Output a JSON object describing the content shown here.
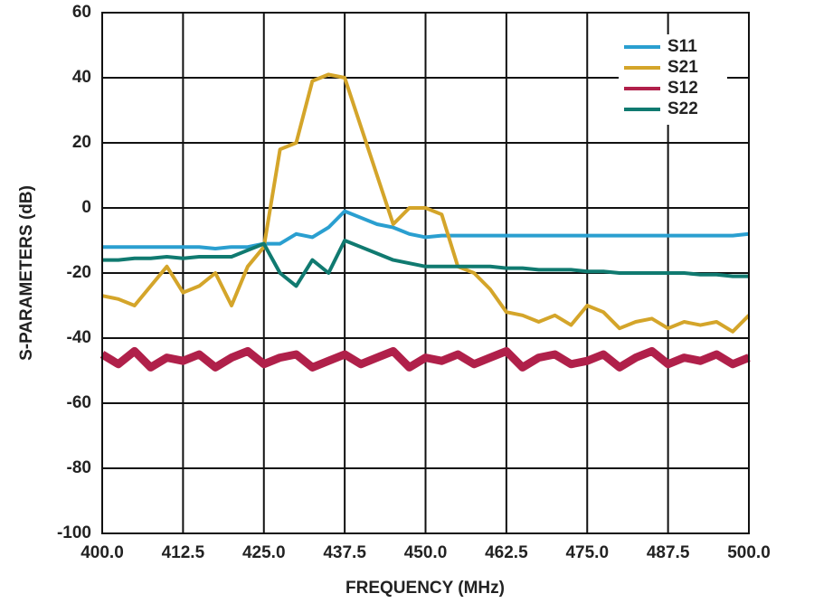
{
  "chart_data": {
    "type": "line",
    "ylabel": "S-PARAMETERS (dB)",
    "xlabel": "FREQUENCY (MHz)",
    "xlim": [
      400,
      500
    ],
    "ylim": [
      -100,
      60
    ],
    "xticks": [
      {
        "value": 400,
        "label": "400.0"
      },
      {
        "value": 412.5,
        "label": "412.5"
      },
      {
        "value": 425,
        "label": "425.0"
      },
      {
        "value": 437.5,
        "label": "437.5"
      },
      {
        "value": 450,
        "label": "450.0"
      },
      {
        "value": 462.5,
        "label": "462.5"
      },
      {
        "value": 475,
        "label": "475.0"
      },
      {
        "value": 487.5,
        "label": "487.5"
      },
      {
        "value": 500,
        "label": "500.0"
      }
    ],
    "yticks": [
      60,
      40,
      20,
      0,
      -20,
      -40,
      -60,
      -80,
      -100
    ],
    "grid": true,
    "legend": "upper right",
    "x": [
      400,
      402.5,
      405,
      407.5,
      410,
      412.5,
      415,
      417.5,
      420,
      422.5,
      425,
      427.5,
      430,
      432.5,
      435,
      437.5,
      440,
      442.5,
      445,
      447.5,
      450,
      452.5,
      455,
      457.5,
      460,
      462.5,
      465,
      467.5,
      470,
      472.5,
      475,
      477.5,
      480,
      482.5,
      485,
      487.5,
      490,
      492.5,
      495,
      497.5,
      500
    ],
    "series": [
      {
        "name": "S11",
        "color": "#2a9fd0",
        "values": [
          -12,
          -12,
          -12,
          -12,
          -12,
          -12,
          -12,
          -12.5,
          -12,
          -12,
          -11,
          -11,
          -8,
          -9,
          -6,
          -1,
          -3,
          -5,
          -6,
          -8,
          -9,
          -8.5,
          -8.5,
          -8.5,
          -8.5,
          -8.5,
          -8.5,
          -8.5,
          -8.5,
          -8.5,
          -8.5,
          -8.5,
          -8.5,
          -8.5,
          -8.5,
          -8.5,
          -8.5,
          -8.5,
          -8.5,
          -8.5,
          -8
        ]
      },
      {
        "name": "S21",
        "color": "#d4a52a",
        "values": [
          -27,
          -28,
          -30,
          -24,
          -18,
          -26,
          -24,
          -20,
          -30,
          -18,
          -12,
          18,
          20,
          39,
          41,
          40,
          25,
          10,
          -5,
          0,
          0,
          -2,
          -18,
          -20,
          -25,
          -32,
          -33,
          -35,
          -33,
          -36,
          -30,
          -32,
          -37,
          -35,
          -34,
          -37,
          -35,
          -36,
          -35,
          -38,
          -33
        ]
      },
      {
        "name": "S12",
        "color": "#b0204a",
        "values": [
          -45,
          -48,
          -44,
          -49,
          -46,
          -47,
          -45,
          -49,
          -46,
          -44,
          -48,
          -46,
          -45,
          -49,
          -47,
          -45,
          -48,
          -46,
          -44,
          -49,
          -46,
          -47,
          -45,
          -48,
          -46,
          -44,
          -49,
          -46,
          -45,
          -48,
          -47,
          -45,
          -49,
          -46,
          -44,
          -48,
          -46,
          -47,
          -45,
          -48,
          -46
        ]
      },
      {
        "name": "S22",
        "color": "#107a70",
        "values": [
          -16,
          -16,
          -15.5,
          -15.5,
          -15,
          -15.5,
          -15,
          -15,
          -15,
          -13,
          -11,
          -20,
          -24,
          -16,
          -20,
          -10,
          -12,
          -14,
          -16,
          -17,
          -18,
          -18,
          -18,
          -18,
          -18,
          -18.5,
          -18.5,
          -19,
          -19,
          -19,
          -19.5,
          -19.5,
          -20,
          -20,
          -20,
          -20,
          -20,
          -20.5,
          -20.5,
          -21,
          -21
        ]
      }
    ]
  }
}
